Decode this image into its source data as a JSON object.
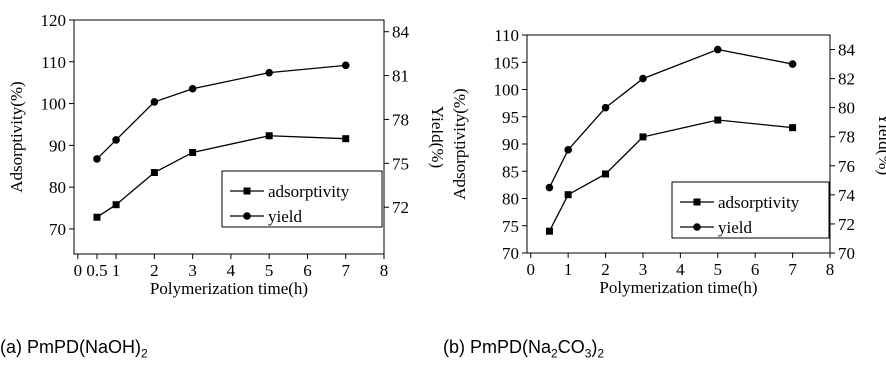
{
  "chart_data": [
    {
      "type": "line",
      "caption": {
        "prefix": "(a) PmPD(NaOH)",
        "sub": "2",
        "suffix": ""
      },
      "xlabel": "Polymerization time(h)",
      "ylabel": "Adsorptivity(%)",
      "y2label": "Yield(%)",
      "xlim": [
        -0.1,
        8
      ],
      "ylim": [
        64,
        120
      ],
      "y2lim": [
        68.8,
        84.8
      ],
      "xticks": [
        "0",
        "0.5",
        "1",
        "2",
        "3",
        "4",
        "5",
        "6",
        "7",
        "8"
      ],
      "yticks": [
        70,
        80,
        90,
        100,
        110,
        120
      ],
      "y2ticks": [
        72,
        75,
        78,
        81,
        84
      ],
      "series": [
        {
          "name": "adsorptivity",
          "axis": "left",
          "marker": "square",
          "x": [
            0.5,
            1,
            2,
            3,
            5,
            7
          ],
          "values": [
            72.8,
            75.8,
            83.5,
            88.3,
            92.3,
            91.6
          ]
        },
        {
          "name": "yield",
          "axis": "right",
          "marker": "circle",
          "x": [
            0.5,
            1,
            2,
            3,
            5,
            7
          ],
          "values": [
            75.3,
            76.6,
            79.2,
            80.1,
            81.2,
            81.7
          ]
        }
      ],
      "legend": "bottom-right"
    },
    {
      "type": "line",
      "caption": {
        "prefix": "(b) PmPD(Na",
        "sub": "2",
        "suffix": "CO",
        "sub2": "3",
        "suffix2": ")",
        "sub3": "2"
      },
      "xlabel": "Polymerization time(h)",
      "ylabel": "Adsorptivity(%)",
      "y2label": "Yield(%)",
      "xlim": [
        -0.1,
        8
      ],
      "ylim": [
        70,
        110
      ],
      "y2lim": [
        70,
        85
      ],
      "xticks": [
        "0",
        "1",
        "2",
        "3",
        "4",
        "5",
        "6",
        "7",
        "8"
      ],
      "yticks": [
        70,
        75,
        80,
        85,
        90,
        95,
        100,
        105,
        110
      ],
      "y2ticks": [
        70,
        72,
        74,
        76,
        78,
        80,
        82,
        84
      ],
      "series": [
        {
          "name": "adsorptivity",
          "axis": "left",
          "marker": "square",
          "x": [
            0.5,
            1,
            2,
            3,
            5,
            7
          ],
          "values": [
            74.0,
            80.7,
            84.5,
            91.3,
            94.4,
            93.0
          ]
        },
        {
          "name": "yield",
          "axis": "right",
          "marker": "circle",
          "x": [
            0.5,
            1,
            2,
            3,
            5,
            7
          ],
          "values": [
            74.5,
            77.1,
            80.0,
            82.0,
            84.0,
            83.0
          ]
        }
      ],
      "legend": "bottom-right"
    }
  ]
}
